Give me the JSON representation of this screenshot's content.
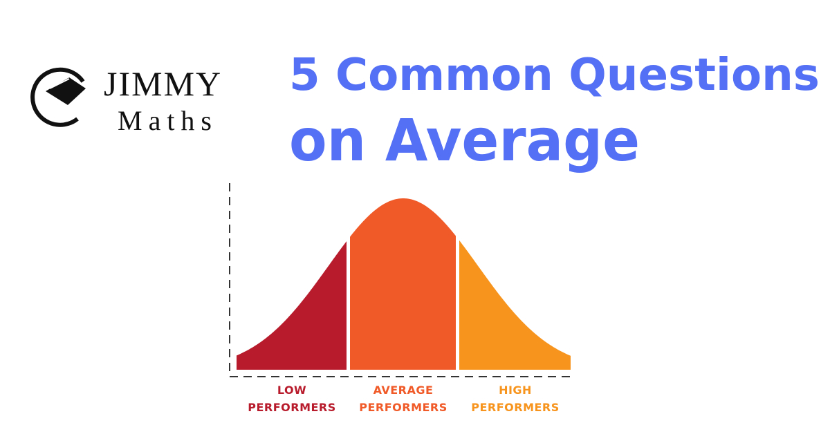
{
  "logo": {
    "name": "JIMMY",
    "sub": "Maths"
  },
  "title": {
    "line1": "5 Common Questions",
    "line2": "on Average"
  },
  "diagram": {
    "segments": [
      {
        "lines": [
          "LOW",
          "PERFORMERS"
        ]
      },
      {
        "lines": [
          "AVERAGE",
          "PERFORMERS"
        ]
      },
      {
        "lines": [
          "HIGH",
          "PERFORMERS"
        ]
      }
    ]
  }
}
